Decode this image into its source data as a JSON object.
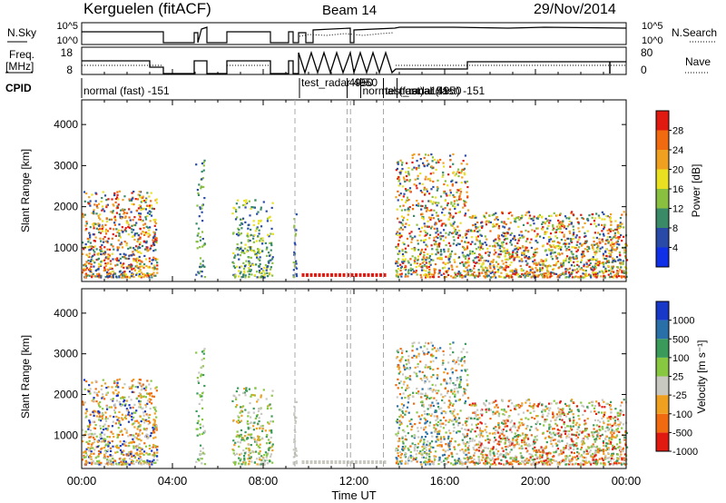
{
  "header": {
    "station": "Kerguelen (fitACF)",
    "beam": "Beam 14",
    "date": "29/Nov/2014"
  },
  "panel_labels": {
    "nsky": "N.Sky",
    "nsearch": "N.Search",
    "freq": "Freq.",
    "freq_unit": "[MHz]",
    "nave": "Nave",
    "cpid": "CPID"
  },
  "colors": {
    "axis": "#000000",
    "marker_line": "#a8a8a8",
    "background_gs": "#c8c8c0"
  },
  "chart_data": [
    {
      "type": "line",
      "name": "noise",
      "yticks_left": [
        "10^5",
        "10^0"
      ],
      "yticks_right": [
        "10^5",
        "10^0"
      ]
    },
    {
      "type": "line",
      "name": "freq-nave",
      "yticks_left": [
        "18",
        "8"
      ],
      "yticks_right": [
        "80",
        "0"
      ]
    },
    {
      "type": "table",
      "name": "cpid",
      "segments": [
        {
          "label": "normal (fast) -151",
          "start": 0.0
        },
        {
          "label": "test_radar 4950",
          "start": 9.6
        },
        {
          "label": "4950",
          "start": 11.7
        },
        {
          "label": "normal (fast) -151",
          "start": 12.3
        },
        {
          "label": "test_radar 4950",
          "start": 13.3
        },
        {
          "label": "normal (fast) -151",
          "start": 13.9
        }
      ]
    },
    {
      "type": "heatmap",
      "name": "power",
      "ylabel": "Slant Range [km]",
      "yticks": [
        "1000",
        "2000",
        "3000",
        "4000"
      ],
      "ylim": [
        180,
        4600
      ],
      "colorbar_label": "Power [dB]",
      "colorbar_ticks": [
        "4",
        "8",
        "12",
        "16",
        "20",
        "24",
        "28"
      ],
      "colorbar_colors": [
        "#1030e8",
        "#2a4aa8",
        "#3a8a68",
        "#8ac040",
        "#e8e020",
        "#f0a020",
        "#f06a10",
        "#e01a10"
      ]
    },
    {
      "type": "heatmap",
      "name": "velocity",
      "ylabel": "Slant Range [km]",
      "yticks": [
        "1000",
        "2000",
        "3000",
        "4000"
      ],
      "ylim": [
        180,
        4600
      ],
      "colorbar_label": "Velocity [m s⁻¹]",
      "colorbar_ticks": [
        "1000",
        "500",
        "100",
        "25",
        "-25",
        "-100",
        "-500",
        "-1000"
      ],
      "colorbar_colors": [
        "#1838c8",
        "#2a70a8",
        "#3a9a5a",
        "#88c840",
        "#c8c8c0",
        "#f0a020",
        "#f06a10",
        "#e01a10"
      ]
    }
  ],
  "x_axis": {
    "label": "Time UT",
    "ticks": [
      "00:00",
      "04:00",
      "08:00",
      "12:00",
      "16:00",
      "20:00",
      "00:00"
    ]
  }
}
